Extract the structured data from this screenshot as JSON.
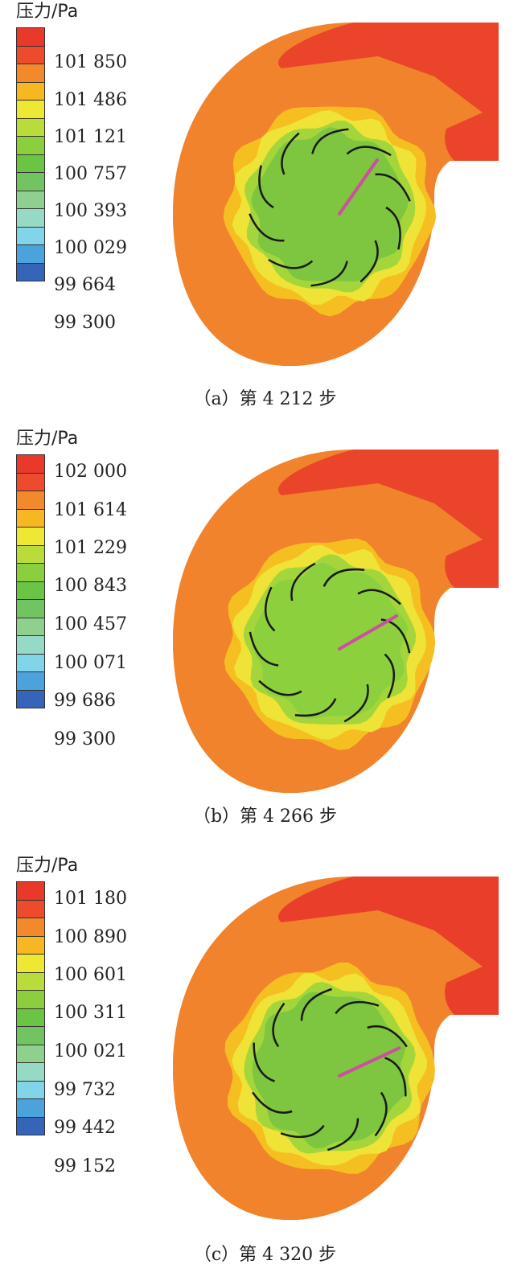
{
  "legend_colors": [
    "#e8392a",
    "#ee4a2e",
    "#f28a2c",
    "#f6b722",
    "#eee734",
    "#b9dc3b",
    "#8bcf3e",
    "#6cc444",
    "#72c462",
    "#8fd08e",
    "#96d9c4",
    "#82d4e9",
    "#4ca3dc",
    "#3564b9"
  ],
  "panels": [
    {
      "legend_title": "压力/Pa",
      "ticks": [
        "101 850",
        "101 486",
        "101 121",
        "100 757",
        "100 393",
        "100 029",
        "99 664",
        "99 300"
      ],
      "caption": "（a）第 4 212 步",
      "rotor_angle": 0,
      "pointer_angle": -55,
      "fill": {
        "outer": "#f0832c",
        "casing_red": "#e93e2a",
        "ring_yellow": "#efe338",
        "ring_amber": "#f6bf21",
        "core": "#7ec540",
        "core_light": "#a4d63c"
      }
    },
    {
      "legend_title": "压力/Pa",
      "ticks": [
        "102 000",
        "101 614",
        "101 229",
        "100 843",
        "100 457",
        "100 071",
        "99 686",
        "99 300"
      ],
      "caption": "（b）第 4 266 步",
      "rotor_angle": 12,
      "pointer_angle": -30,
      "fill": {
        "outer": "#f0832c",
        "casing_red": "#e93e2a",
        "ring_yellow": "#efe338",
        "ring_amber": "#f6bf21",
        "core": "#8cd03e",
        "core_light": "#a4d63c"
      }
    },
    {
      "legend_title": "压力/Pa",
      "ticks": [
        "101 180",
        "100 890",
        "100 601",
        "100 311",
        "100 021",
        "99 732",
        "99 442",
        "99 152"
      ],
      "caption": "（c）第 4 320 步",
      "rotor_angle": 24,
      "pointer_angle": -25,
      "fill": {
        "outer": "#f0832c",
        "casing_red": "#e93e2a",
        "ring_yellow": "#efe338",
        "ring_amber": "#f6bf21",
        "core": "#7ec540",
        "core_light": "#a4d63c"
      }
    }
  ]
}
